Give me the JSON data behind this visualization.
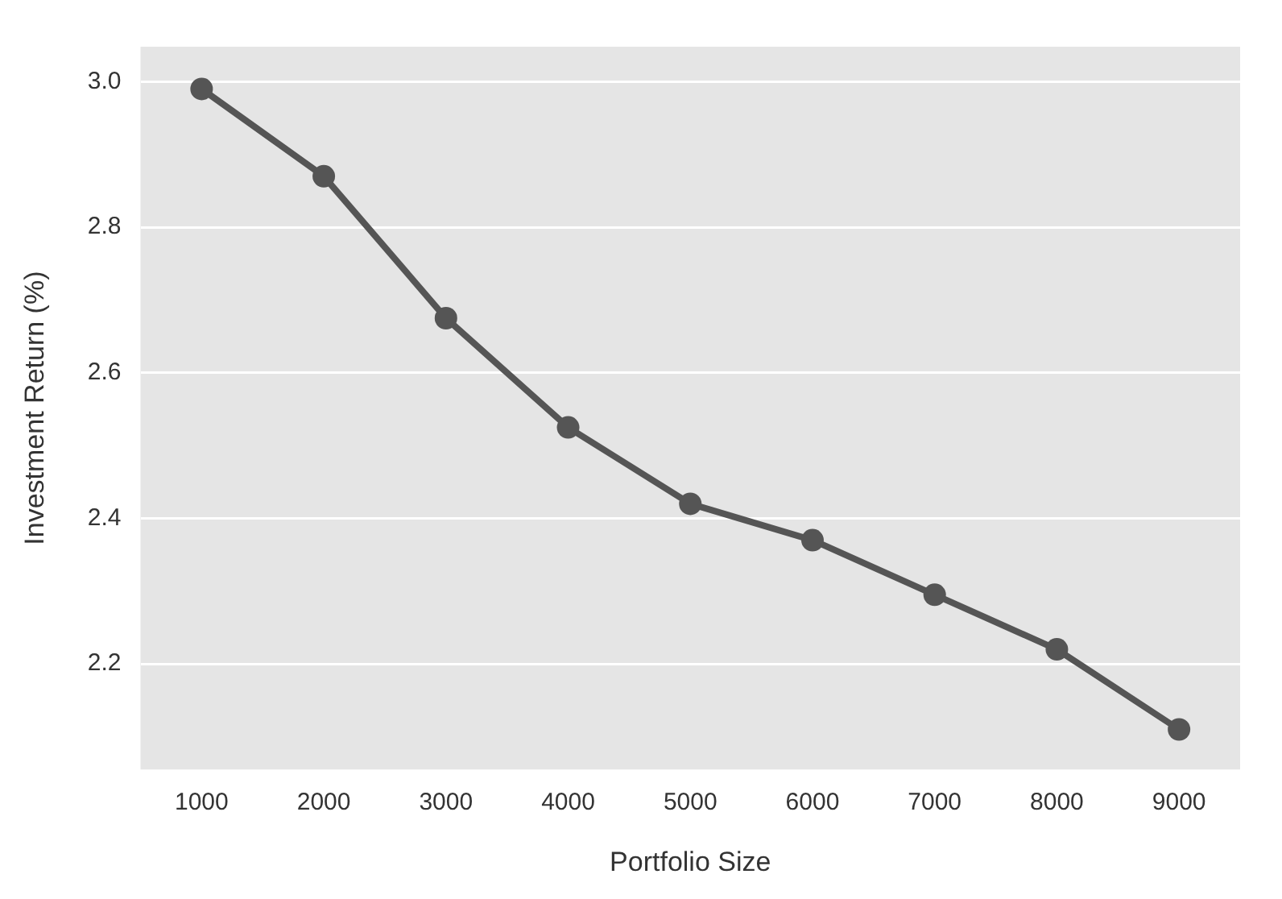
{
  "chart_data": {
    "type": "line",
    "xlabel": "Portfolio Size",
    "ylabel": "Investment Return (%)",
    "categories": [
      "1000",
      "2000",
      "3000",
      "4000",
      "5000",
      "6000",
      "7000",
      "8000",
      "9000"
    ],
    "series": [
      {
        "color": "#555555",
        "values": [
          2.99,
          2.87,
          2.675,
          2.525,
          2.42,
          2.37,
          2.295,
          2.22,
          2.11
        ]
      }
    ],
    "ylim": [
      2.055,
      3.048
    ],
    "yticks": [
      {
        "value": 2.2,
        "label": "2.2"
      },
      {
        "value": 2.4,
        "label": "2.4"
      },
      {
        "value": 2.6,
        "label": "2.6"
      },
      {
        "value": 2.8,
        "label": "2.8"
      },
      {
        "value": 3.0,
        "label": "3.0"
      }
    ],
    "grid": "y",
    "marker": "circle",
    "line_style": "solid",
    "legend": false
  }
}
